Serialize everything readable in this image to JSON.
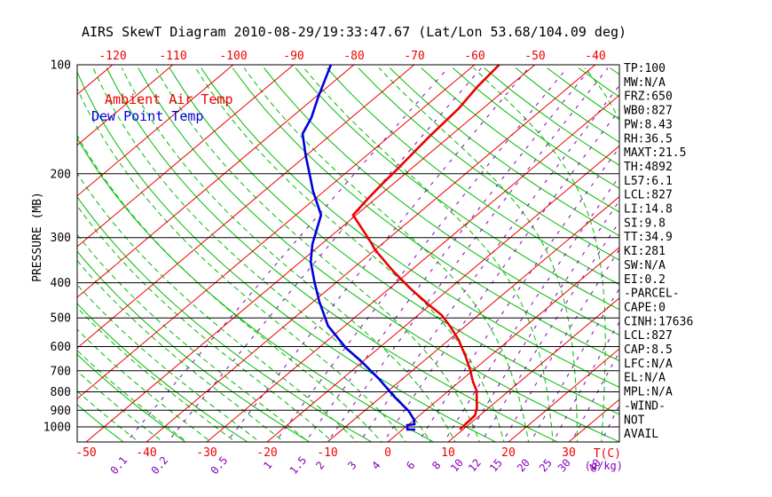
{
  "title": "AIRS SkewT Diagram 2010-08-29/19:33:47.67 (Lat/Lon 53.68/104.09 deg)",
  "legend": {
    "ambient_label": "Ambient Air Temp",
    "dew_label": "Dew Point Temp"
  },
  "colors": {
    "ambient": "#ee0000",
    "dew": "#0000dd",
    "isotherm": "#ee0000",
    "adiabat_green": "#00bb00",
    "mixing_purple": "#8400b8",
    "axis_black": "#000000",
    "background": "#ffffff"
  },
  "axes": {
    "pressure_label": "PRESSURE (MB)",
    "pressure_ticks": [
      100,
      200,
      300,
      400,
      500,
      600,
      700,
      800,
      900,
      1000
    ],
    "top_temp_ticks": [
      -120,
      -110,
      -100,
      -90,
      -80,
      -70,
      -60,
      -50,
      -40
    ],
    "bottom_temp_ticks": [
      -50,
      -40,
      -30,
      -20,
      -10,
      0,
      10,
      20,
      30
    ],
    "temp_unit_label": "T(C)",
    "mixing_ratio_ticks": [
      0.1,
      0.2,
      0.5,
      1,
      1.5,
      2,
      3,
      4,
      6,
      8,
      10,
      12,
      15,
      20,
      25,
      30,
      40
    ],
    "mixing_ratio_unit_label": "(g/kg)"
  },
  "stats": [
    "TP:100",
    "MW:N/A",
    "FRZ:650",
    "WB0:827",
    "PW:8.43",
    "RH:36.5",
    "MAXT:21.5",
    "TH:4892",
    "L57:6.1",
    "LCL:827",
    "LI:14.8",
    "SI:9.8",
    "TT:34.9",
    "KI:281",
    "SW:N/A",
    "EI:0.2",
    "-PARCEL-",
    "CAPE:0",
    "CINH:17636",
    "LCL:827",
    "CAP:8.5",
    "LFC:N/A",
    "EL:N/A",
    "MPL:N/A",
    "-WIND-",
    "NOT",
    "AVAIL"
  ],
  "chart_data": {
    "type": "line",
    "title": "AIRS SkewT Diagram 2010-08-29/19:33:47.67 (Lat/Lon 53.68/104.09 deg)",
    "x_axis": {
      "label": "T(C)",
      "bottom_ticks": [
        -50,
        -40,
        -30,
        -20,
        -10,
        0,
        10,
        20,
        30
      ],
      "top_ticks": [
        -120,
        -110,
        -100,
        -90,
        -80,
        -70,
        -60,
        -50,
        -40
      ]
    },
    "y_axis": {
      "label": "PRESSURE (MB)",
      "scale": "log",
      "range": [
        100,
        1100
      ],
      "ticks": [
        100,
        200,
        300,
        400,
        500,
        600,
        700,
        800,
        900,
        1000
      ]
    },
    "grid": {
      "isotherm_min": -130,
      "isotherm_max": 50,
      "isotherm_step": 10,
      "dry_adiabat_theta_min": -60,
      "dry_adiabat_theta_max": 190,
      "dry_adiabat_theta_step": 10,
      "moist_adiabat_thetaw_min": -40,
      "moist_adiabat_thetaw_max": 40,
      "moist_adiabat_thetaw_step": 4,
      "mixing_ratio_lines_gkg": [
        0.1,
        0.2,
        0.5,
        1,
        1.5,
        2,
        3,
        4,
        6,
        8,
        10,
        12,
        15,
        20,
        25,
        30,
        40
      ]
    },
    "series": [
      {
        "name": "Ambient Air Temp",
        "color": "#ee0000",
        "units": {
          "pressure": "mb",
          "temperature": "C"
        },
        "points": [
          [
            100,
            -55.9
          ],
          [
            115,
            -55.2
          ],
          [
            132,
            -54.0
          ],
          [
            159,
            -53.3
          ],
          [
            181,
            -52.6
          ],
          [
            199,
            -52.1
          ],
          [
            214,
            -51.8
          ],
          [
            236,
            -51.2
          ],
          [
            260,
            -50.5
          ],
          [
            309,
            -42.2
          ],
          [
            325,
            -39.9
          ],
          [
            370,
            -33.0
          ],
          [
            415,
            -26.5
          ],
          [
            459,
            -20.4
          ],
          [
            491,
            -16.1
          ],
          [
            526,
            -12.6
          ],
          [
            575,
            -8.4
          ],
          [
            640,
            -3.9
          ],
          [
            697,
            -0.5
          ],
          [
            750,
            2.2
          ],
          [
            794,
            4.6
          ],
          [
            888,
            8.1
          ],
          [
            929,
            9.2
          ],
          [
            956,
            9.3
          ],
          [
            994,
            9.4
          ],
          [
            1017,
            9.5
          ]
        ]
      },
      {
        "name": "Dew Point Temp",
        "color": "#0000dd",
        "units": {
          "pressure": "mb",
          "temperature": "C"
        },
        "points": [
          [
            100,
            -83.8
          ],
          [
            123,
            -79.5
          ],
          [
            140,
            -76.6
          ],
          [
            155,
            -74.9
          ],
          [
            178,
            -70.1
          ],
          [
            207,
            -64.6
          ],
          [
            223,
            -61.9
          ],
          [
            260,
            -55.8
          ],
          [
            313,
            -51.5
          ],
          [
            350,
            -48.3
          ],
          [
            399,
            -43.6
          ],
          [
            451,
            -39.0
          ],
          [
            526,
            -32.8
          ],
          [
            605,
            -25.5
          ],
          [
            659,
            -20.3
          ],
          [
            737,
            -13.9
          ],
          [
            826,
            -7.8
          ],
          [
            903,
            -2.7
          ],
          [
            956,
            0.0
          ],
          [
            983,
            0.9
          ],
          [
            989,
            -0.1
          ],
          [
            1017,
            0.8
          ],
          [
            1017,
            2.1
          ]
        ]
      }
    ]
  }
}
